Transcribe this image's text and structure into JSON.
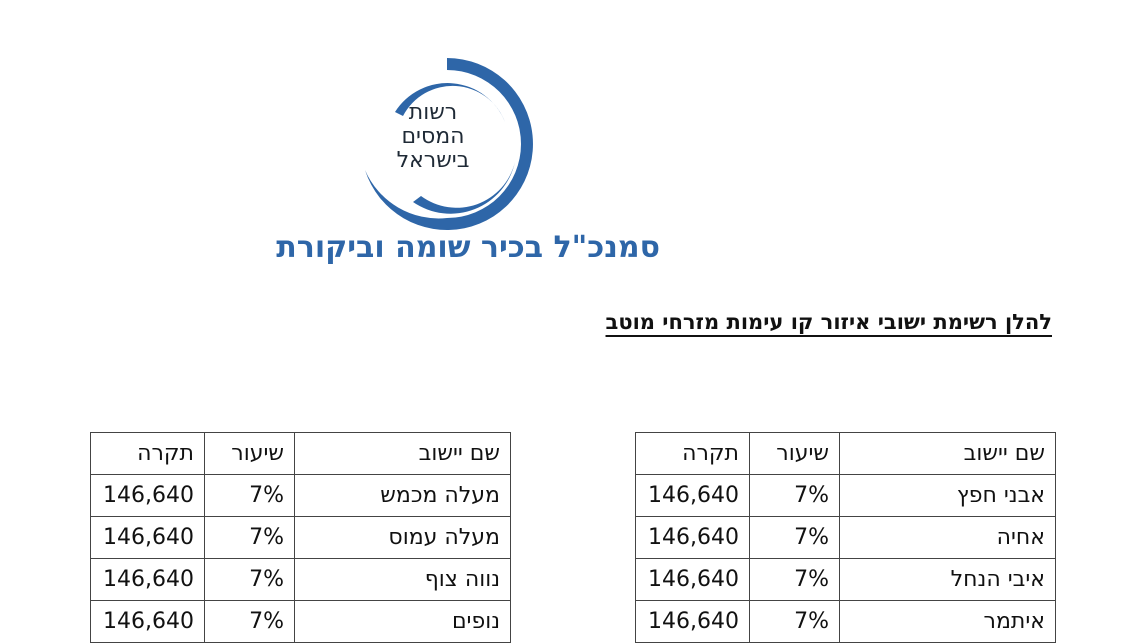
{
  "logo": {
    "lines": [
      "רשות",
      "המסים",
      "בישראל"
    ],
    "color": "#2e66a8"
  },
  "department_title": "סמנכ\"ל בכיר שומה וביקורת",
  "subtitle": "להלן רשימת ישובי איזור קו עימות מזרחי מוטב",
  "tables": {
    "headers": {
      "name": "שם יישוב",
      "rate": "שיעור",
      "cap": "תקרה"
    },
    "right_rows": [
      {
        "name": "אבני חפץ",
        "rate": "7%",
        "cap": "146,640"
      },
      {
        "name": "אחיה",
        "rate": "7%",
        "cap": "146,640"
      },
      {
        "name": "איבי הנחל",
        "rate": "7%",
        "cap": "146,640"
      },
      {
        "name": "איתמר",
        "rate": "7%",
        "cap": "146,640"
      }
    ],
    "left_rows": [
      {
        "name": "מעלה מכמש",
        "rate": "7%",
        "cap": "146,640"
      },
      {
        "name": "מעלה עמוס",
        "rate": "7%",
        "cap": "146,640"
      },
      {
        "name": "נווה צוף",
        "rate": "7%",
        "cap": "146,640"
      },
      {
        "name": "נופים",
        "rate": "7%",
        "cap": "146,640"
      }
    ]
  }
}
